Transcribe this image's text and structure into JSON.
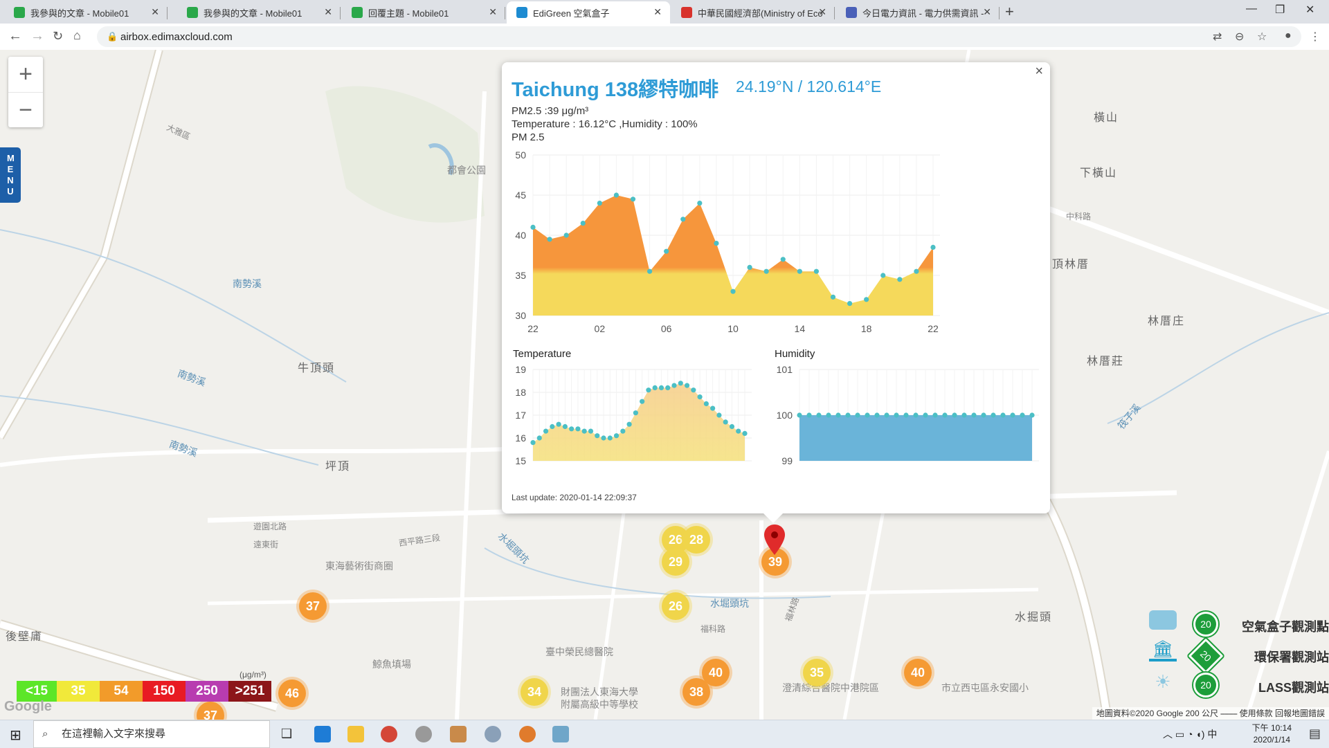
{
  "browser": {
    "tabs": [
      {
        "title": "我參與的文章 - Mobile01",
        "color": "#2aa84a",
        "active": false
      },
      {
        "title": "我參與的文章 - Mobile01",
        "color": "#2aa84a",
        "active": false
      },
      {
        "title": "回覆主題 - Mobile01",
        "color": "#2aa84a",
        "active": false
      },
      {
        "title": "EdiGreen 空氣盒子",
        "color": "#1d8bd1",
        "active": true
      },
      {
        "title": "中華民國經濟部(Ministry of Eco",
        "color": "#d8322c",
        "active": false
      },
      {
        "title": "今日電力資訊 - 電力供需資訊 - 台",
        "color": "#4a60b8",
        "active": false
      }
    ],
    "url": "airbox.edimaxcloud.com"
  },
  "map": {
    "labels": [
      {
        "text": "牛頂頭",
        "kind": "place"
      },
      {
        "text": "坪頂",
        "kind": "place"
      },
      {
        "text": "後壁庯",
        "kind": "place"
      },
      {
        "text": "橫山",
        "kind": "place"
      },
      {
        "text": "下橫山",
        "kind": "place"
      },
      {
        "text": "頂林厝",
        "kind": "place"
      },
      {
        "text": "林厝庄",
        "kind": "place"
      },
      {
        "text": "林厝莊",
        "kind": "place"
      },
      {
        "text": "水掘頭",
        "kind": "place"
      },
      {
        "text": "南勢溪",
        "kind": "river"
      },
      {
        "text": "南勢溪",
        "kind": "river"
      },
      {
        "text": "南勢溪",
        "kind": "river"
      },
      {
        "text": "水堀頭坑",
        "kind": "river"
      },
      {
        "text": "水堀頭坑",
        "kind": "river"
      },
      {
        "text": "筏子溪",
        "kind": "river"
      },
      {
        "text": "都會公園",
        "kind": "street"
      },
      {
        "text": "東海藝術街商圈",
        "kind": "street"
      },
      {
        "text": "鯨魚填場",
        "kind": "street"
      },
      {
        "text": "臺中榮民總醫院",
        "kind": "street"
      },
      {
        "text": "財團法人東海大學",
        "kind": "street"
      },
      {
        "text": "附屬高級中等學校",
        "kind": "street"
      },
      {
        "text": "澄清綜合醫院中港院區",
        "kind": "street"
      },
      {
        "text": "市立西屯區永安國小",
        "kind": "street"
      },
      {
        "text": "西平路三段",
        "kind": "street"
      },
      {
        "text": "遊園北路",
        "kind": "street"
      },
      {
        "text": "遠東街",
        "kind": "street"
      },
      {
        "text": "福科路",
        "kind": "street"
      },
      {
        "text": "福林路",
        "kind": "street"
      },
      {
        "text": "中科路",
        "kind": "street"
      },
      {
        "text": "大雅區",
        "kind": "street"
      }
    ],
    "clusters": [
      {
        "value": "26",
        "color": "yellow"
      },
      {
        "value": "28",
        "color": "yellow"
      },
      {
        "value": "29",
        "color": "yellow"
      },
      {
        "value": "39",
        "color": "orange"
      },
      {
        "value": "26",
        "color": "yellow"
      },
      {
        "value": "37",
        "color": "orange"
      },
      {
        "value": "40",
        "color": "orange"
      },
      {
        "value": "38",
        "color": "orange"
      },
      {
        "value": "34",
        "color": "yellow"
      },
      {
        "value": "35",
        "color": "yellow"
      },
      {
        "value": "40",
        "color": "orange"
      },
      {
        "value": "46",
        "color": "orange"
      },
      {
        "value": "37",
        "color": "orange"
      }
    ],
    "zoom_in": "+",
    "zoom_out": "−",
    "menu": "MENU",
    "legend": {
      "unit": "(μg/m³)",
      "segments": [
        {
          "label": "<15",
          "color": "#5ce628"
        },
        {
          "label": "35",
          "color": "#f1e93a"
        },
        {
          "label": "54",
          "color": "#f29b2a"
        },
        {
          "label": "150",
          "color": "#e81b23"
        },
        {
          "label": "250",
          "color": "#b83cb0"
        },
        {
          "label": ">251",
          "color": "#8c1619"
        }
      ]
    },
    "stations": [
      {
        "label": "空氣盒子觀測點",
        "badge": "20"
      },
      {
        "label": "環保署觀測站",
        "badge": "20"
      },
      {
        "label": "LASS觀測站",
        "badge": "20"
      }
    ],
    "attribution": "地圖資料©2020 Google   200 公尺 ⎯⎯⎯⎯   使用條款   回報地圖錯誤",
    "google": "Google"
  },
  "popup": {
    "title": "Taichung 138繆特咖啡",
    "coordinates": "24.19°N / 120.614°E",
    "pm25_line": "PM2.5 :39 μg/m³",
    "temp_line": "Temperature : 16.12°C ,Humidity : 100%",
    "chart_title": "PM 2.5",
    "last_update": "Last update: 2020-01-14 22:09:37",
    "close": "×"
  },
  "chart_data": [
    {
      "type": "area",
      "title": "PM 2.5",
      "x_ticks": [
        "22",
        "02",
        "06",
        "10",
        "14",
        "18",
        "22"
      ],
      "ylim": [
        30,
        50
      ],
      "y_ticks": [
        30,
        35,
        40,
        45,
        50
      ],
      "x": [
        0,
        1,
        2,
        3,
        4,
        5,
        6,
        7,
        8,
        9,
        10,
        11,
        12,
        13,
        14,
        15,
        16,
        17,
        18,
        19,
        20,
        21,
        22,
        23,
        24
      ],
      "values": [
        41,
        39.5,
        40,
        41.5,
        44,
        45,
        44.5,
        35.5,
        38,
        42,
        44,
        39,
        33,
        36,
        35.5,
        37,
        35.5,
        35.5,
        32.3,
        31.5,
        32,
        35,
        34.5,
        35.5,
        38.5
      ],
      "colors": {
        "above": "#f6963c",
        "below": "#f5d95b",
        "points": "#4bbfc5"
      }
    },
    {
      "type": "area",
      "title": "Temperature",
      "ylim": [
        15,
        19
      ],
      "y_ticks": [
        15,
        16,
        17,
        18,
        19
      ],
      "values": [
        15.8,
        16,
        16.3,
        16.5,
        16.6,
        16.5,
        16.4,
        16.4,
        16.3,
        16.3,
        16.1,
        16,
        16,
        16.1,
        16.3,
        16.6,
        17.1,
        17.6,
        18.1,
        18.2,
        18.2,
        18.2,
        18.3,
        18.4,
        18.3,
        18.1,
        17.8,
        17.5,
        17.3,
        17,
        16.7,
        16.5,
        16.3,
        16.2
      ],
      "colors": {
        "fill": "#f6c98a",
        "fill_bottom": "#f5e07a",
        "points": "#4bbfc5"
      }
    },
    {
      "type": "area",
      "title": "Humidity",
      "ylim": [
        99,
        101
      ],
      "y_ticks": [
        99,
        100,
        101
      ],
      "values": [
        100,
        100,
        100,
        100,
        100,
        100,
        100,
        100,
        100,
        100,
        100,
        100,
        100,
        100,
        100,
        100,
        100,
        100,
        100,
        100,
        100,
        100,
        100,
        100,
        100
      ],
      "colors": {
        "fill": "#6ab4d9",
        "points": "#4bbfc5"
      }
    }
  ],
  "taskbar": {
    "search_placeholder": "在這裡輸入文字來搜尋",
    "time": "下午 10:14",
    "date": "2020/1/14"
  }
}
